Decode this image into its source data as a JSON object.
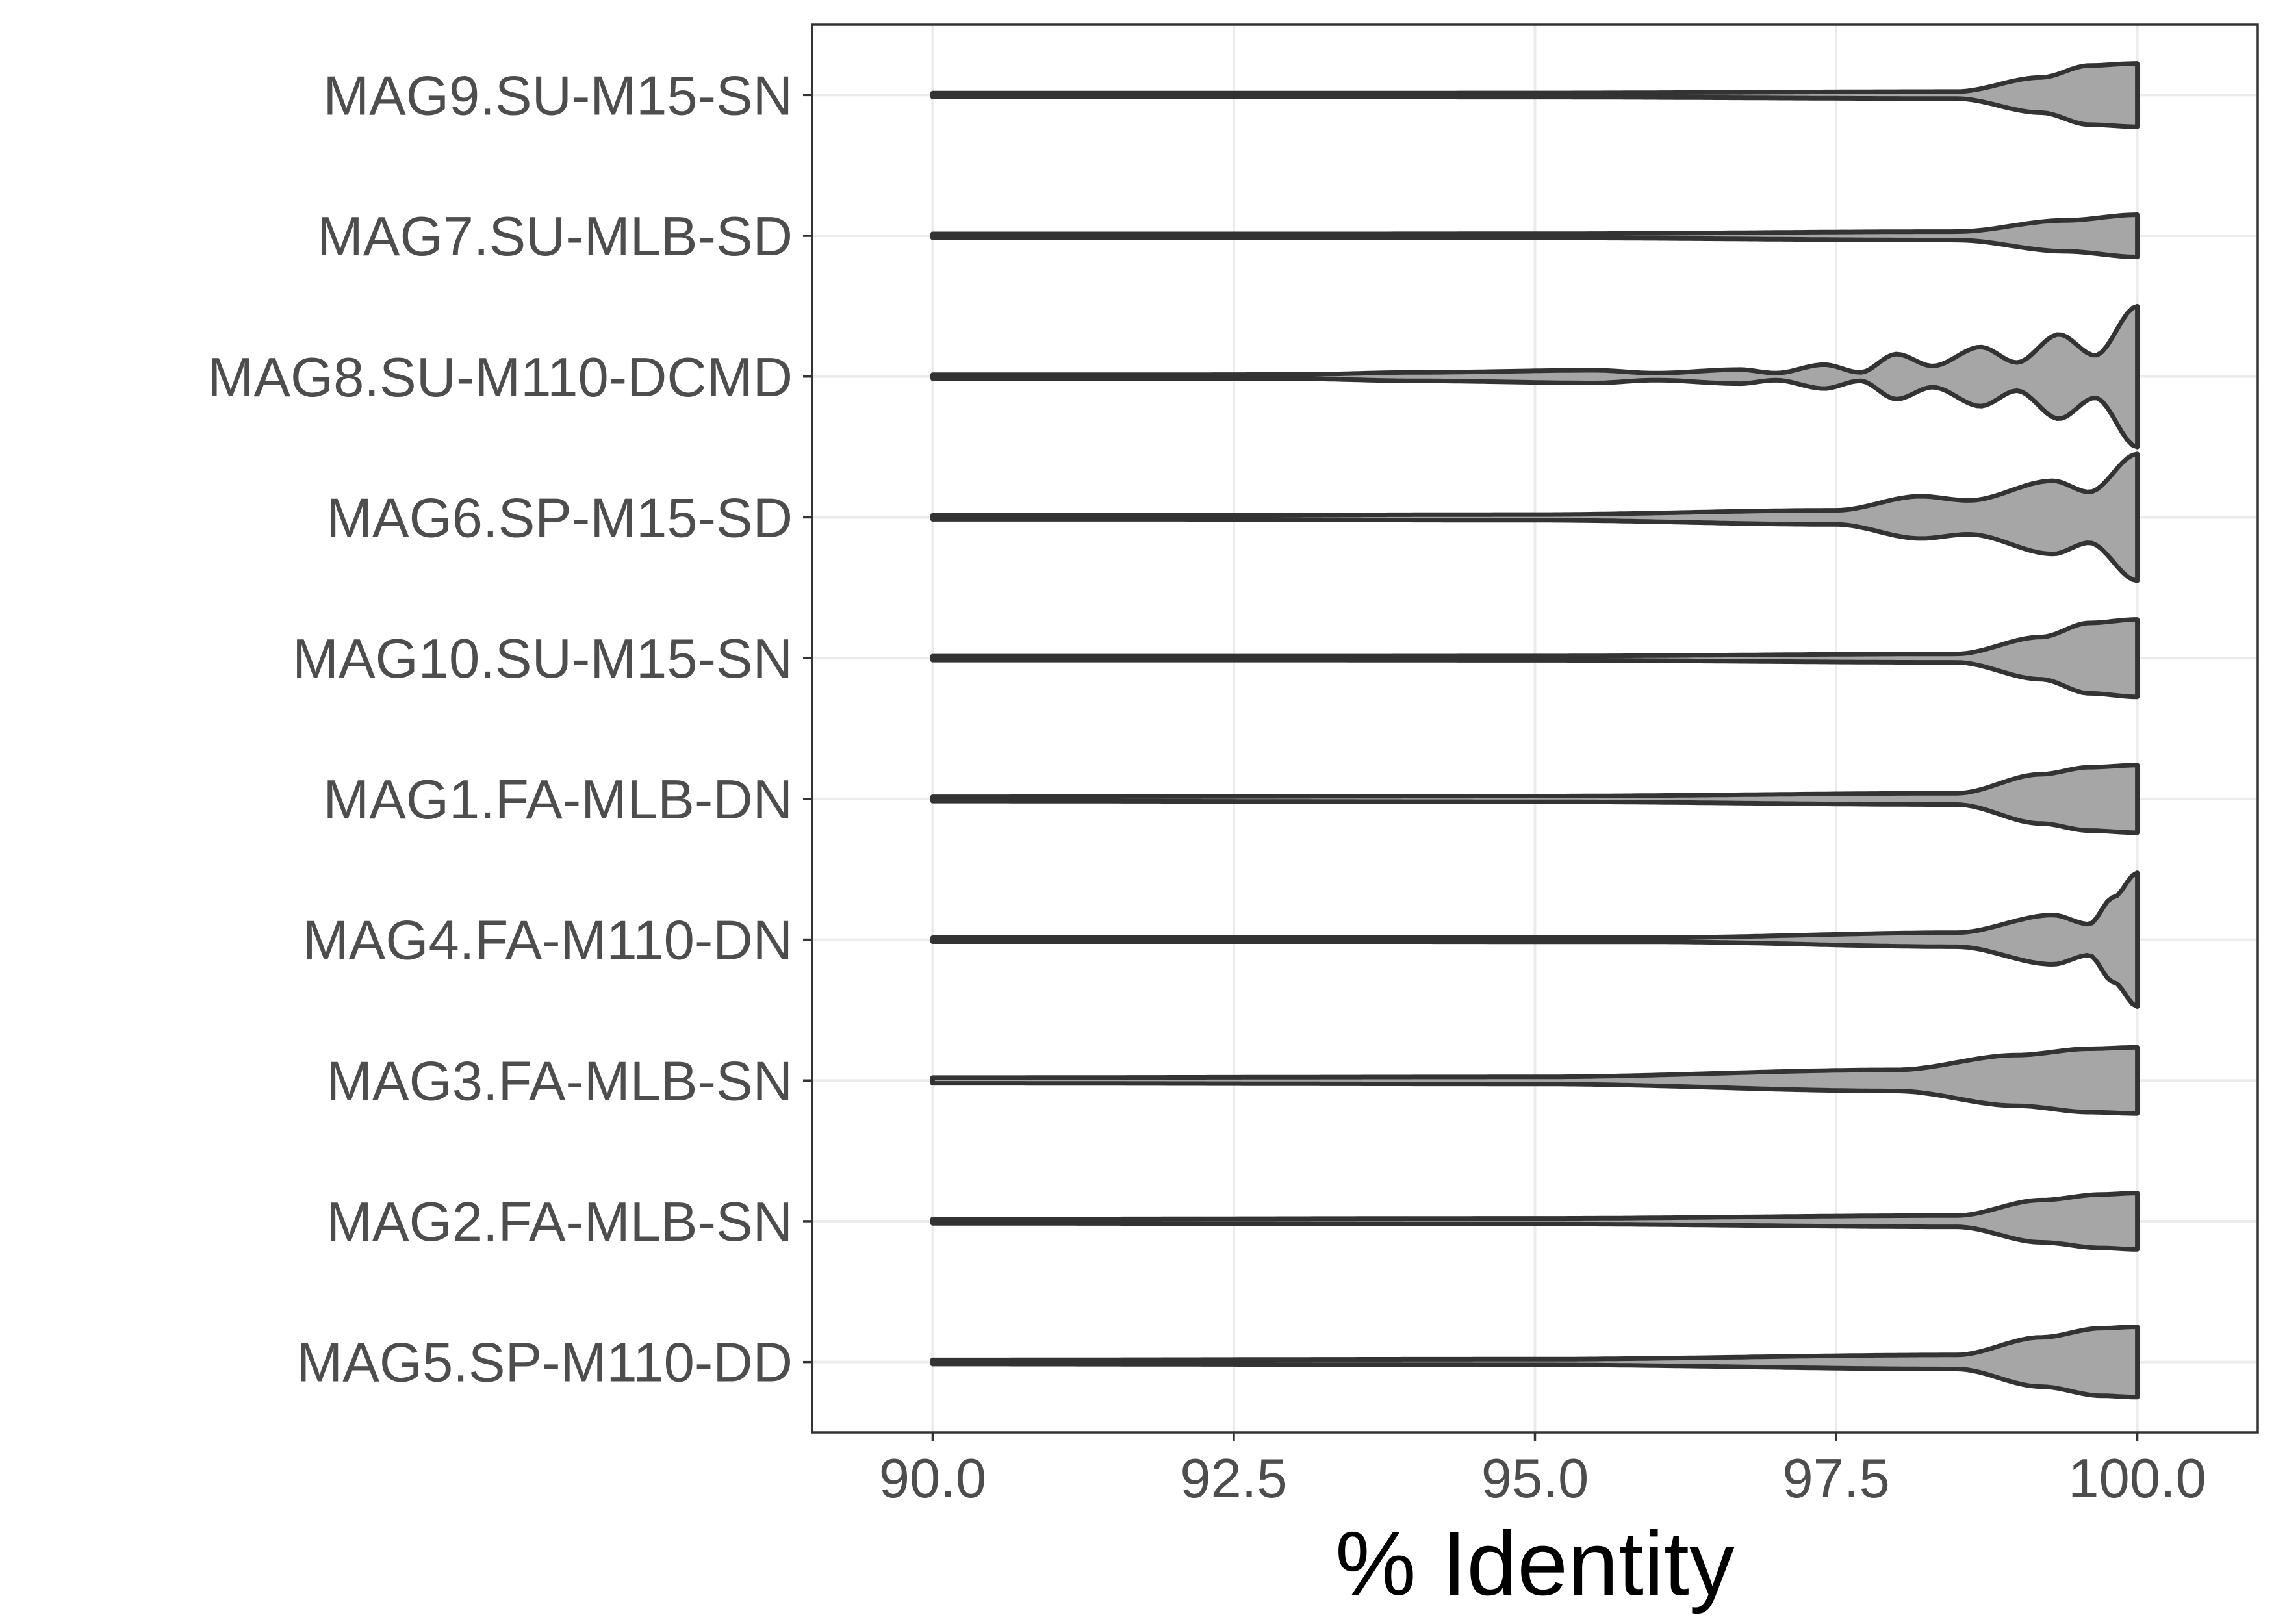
{
  "chart_data": {
    "type": "violin",
    "title": "",
    "xlabel": "% Identity",
    "ylabel": "",
    "xlim": [
      89.0,
      101.0
    ],
    "xticks": [
      90.0,
      92.5,
      95.0,
      97.5,
      100.0
    ],
    "xtick_labels": [
      "90.0",
      "92.5",
      "95.0",
      "97.5",
      "100.0"
    ],
    "grid": true,
    "fill_color": "#a6a6a6",
    "outline_color": "#333333",
    "categories": [
      "MAG9.SU-M15-SN",
      "MAG7.SU-MLB-SD",
      "MAG8.SU-M110-DCMD",
      "MAG6.SP-M15-SD",
      "MAG10.SU-M15-SN",
      "MAG1.FA-MLB-DN",
      "MAG4.FA-M110-DN",
      "MAG3.FA-MLB-SN",
      "MAG2.FA-MLB-SN",
      "MAG5.SP-M110-DD"
    ],
    "series": [
      {
        "category": "MAG9.SU-M15-SN",
        "min": 90.0,
        "max": 100.0,
        "density_profile": [
          [
            90.0,
            0.02
          ],
          [
            95.0,
            0.03
          ],
          [
            98.5,
            0.05
          ],
          [
            99.2,
            0.25
          ],
          [
            99.6,
            0.42
          ],
          [
            100.0,
            0.45
          ]
        ]
      },
      {
        "category": "MAG7.SU-MLB-SD",
        "min": 90.0,
        "max": 100.0,
        "density_profile": [
          [
            90.0,
            0.02
          ],
          [
            95.0,
            0.03
          ],
          [
            98.5,
            0.06
          ],
          [
            99.4,
            0.22
          ],
          [
            100.0,
            0.3
          ]
        ]
      },
      {
        "category": "MAG8.SU-M110-DCMD",
        "min": 90.0,
        "max": 100.0,
        "density_profile": [
          [
            90.0,
            0.02
          ],
          [
            93.0,
            0.03
          ],
          [
            94.0,
            0.06
          ],
          [
            95.5,
            0.09
          ],
          [
            96.0,
            0.05
          ],
          [
            96.7,
            0.1
          ],
          [
            97.0,
            0.05
          ],
          [
            97.4,
            0.17
          ],
          [
            97.7,
            0.06
          ],
          [
            98.0,
            0.32
          ],
          [
            98.3,
            0.15
          ],
          [
            98.7,
            0.42
          ],
          [
            99.0,
            0.2
          ],
          [
            99.35,
            0.6
          ],
          [
            99.65,
            0.3
          ],
          [
            100.0,
            1.0
          ]
        ]
      },
      {
        "category": "MAG6.SP-M15-SD",
        "min": 90.0,
        "max": 100.0,
        "density_profile": [
          [
            90.0,
            0.02
          ],
          [
            95.0,
            0.04
          ],
          [
            97.5,
            0.1
          ],
          [
            98.2,
            0.3
          ],
          [
            98.6,
            0.24
          ],
          [
            99.3,
            0.52
          ],
          [
            99.6,
            0.36
          ],
          [
            100.0,
            0.9
          ]
        ]
      },
      {
        "category": "MAG10.SU-M15-SN",
        "min": 90.0,
        "max": 100.0,
        "density_profile": [
          [
            90.0,
            0.02
          ],
          [
            95.0,
            0.03
          ],
          [
            98.5,
            0.06
          ],
          [
            99.2,
            0.3
          ],
          [
            99.6,
            0.5
          ],
          [
            100.0,
            0.55
          ]
        ]
      },
      {
        "category": "MAG1.FA-MLB-DN",
        "min": 90.0,
        "max": 100.0,
        "density_profile": [
          [
            90.0,
            0.03
          ],
          [
            95.0,
            0.04
          ],
          [
            98.5,
            0.08
          ],
          [
            99.2,
            0.35
          ],
          [
            99.6,
            0.45
          ],
          [
            100.0,
            0.48
          ]
        ]
      },
      {
        "category": "MAG4.FA-M110-DN",
        "min": 90.0,
        "max": 100.0,
        "density_profile": [
          [
            90.0,
            0.02
          ],
          [
            96.0,
            0.03
          ],
          [
            98.5,
            0.1
          ],
          [
            99.3,
            0.35
          ],
          [
            99.6,
            0.22
          ],
          [
            99.8,
            0.6
          ],
          [
            100.0,
            0.95
          ]
        ]
      },
      {
        "category": "MAG3.FA-MLB-SN",
        "min": 90.0,
        "max": 100.0,
        "density_profile": [
          [
            90.0,
            0.04
          ],
          [
            95.0,
            0.05
          ],
          [
            98.0,
            0.15
          ],
          [
            99.0,
            0.36
          ],
          [
            99.6,
            0.45
          ],
          [
            100.0,
            0.47
          ]
        ]
      },
      {
        "category": "MAG2.FA-MLB-SN",
        "min": 90.0,
        "max": 100.0,
        "density_profile": [
          [
            90.0,
            0.03
          ],
          [
            95.0,
            0.04
          ],
          [
            98.5,
            0.08
          ],
          [
            99.2,
            0.3
          ],
          [
            99.7,
            0.38
          ],
          [
            100.0,
            0.4
          ]
        ]
      },
      {
        "category": "MAG5.SP-M110-DD",
        "min": 90.0,
        "max": 100.0,
        "density_profile": [
          [
            90.0,
            0.03
          ],
          [
            95.0,
            0.04
          ],
          [
            98.5,
            0.1
          ],
          [
            99.2,
            0.35
          ],
          [
            99.7,
            0.48
          ],
          [
            100.0,
            0.5
          ]
        ]
      }
    ]
  }
}
